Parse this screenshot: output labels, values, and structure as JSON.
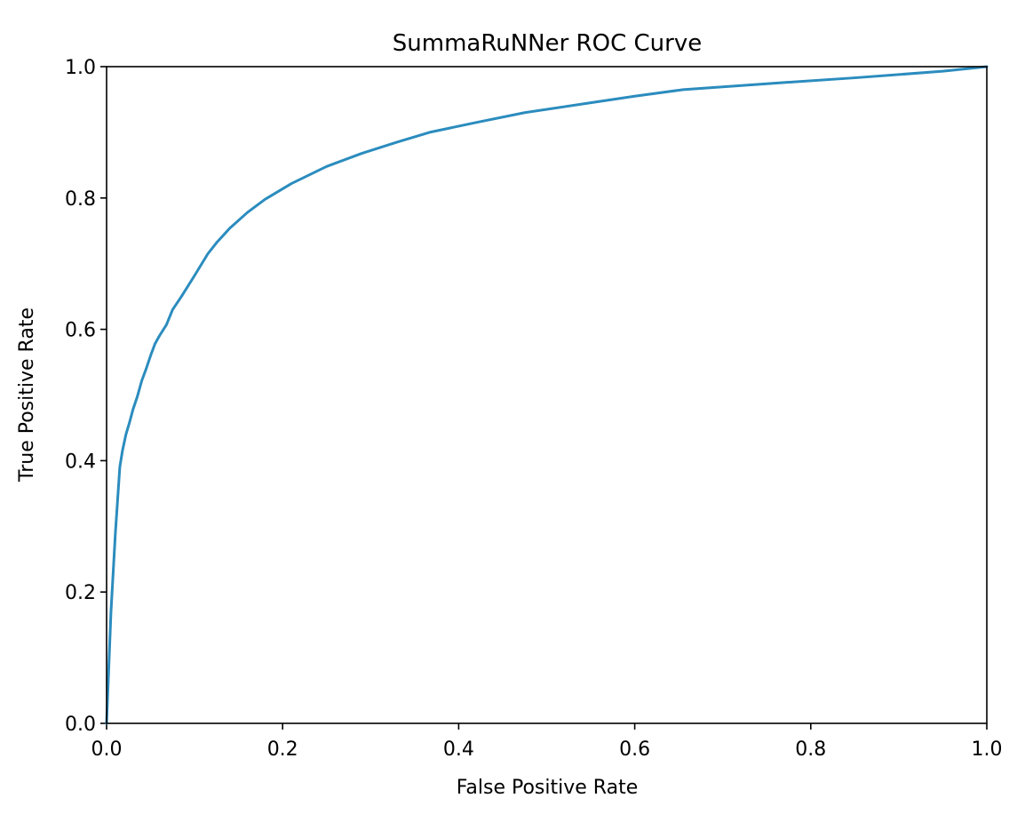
{
  "chart_data": {
    "type": "line",
    "title": "SummaRuNNer ROC Curve",
    "xlabel": "False Positive Rate",
    "ylabel": "True Positive Rate",
    "xlim": [
      0.0,
      1.0
    ],
    "ylim": [
      0.0,
      1.0
    ],
    "grid": false,
    "legend": "none",
    "xticks": [
      "0.0",
      "0.2",
      "0.4",
      "0.6",
      "0.8",
      "1.0"
    ],
    "yticks": [
      "0.0",
      "0.2",
      "0.4",
      "0.6",
      "0.8",
      "1.0"
    ],
    "series": [
      {
        "color": "#2b8cbe",
        "x": [
          0.0,
          0.005,
          0.01,
          0.015,
          0.018,
          0.022,
          0.026,
          0.03,
          0.035,
          0.04,
          0.045,
          0.05,
          0.055,
          0.06,
          0.068,
          0.075,
          0.085,
          0.1,
          0.115,
          0.125,
          0.14,
          0.16,
          0.18,
          0.21,
          0.25,
          0.29,
          0.33,
          0.367,
          0.42,
          0.475,
          0.55,
          0.6,
          0.655,
          0.75,
          0.85,
          0.95,
          1.0
        ],
        "y": [
          0.0,
          0.17,
          0.29,
          0.39,
          0.415,
          0.44,
          0.458,
          0.478,
          0.498,
          0.522,
          0.54,
          0.56,
          0.578,
          0.59,
          0.607,
          0.63,
          0.65,
          0.682,
          0.715,
          0.732,
          0.754,
          0.778,
          0.798,
          0.822,
          0.848,
          0.868,
          0.885,
          0.9,
          0.915,
          0.93,
          0.945,
          0.955,
          0.965,
          0.974,
          0.983,
          0.993,
          1.0
        ]
      }
    ]
  }
}
